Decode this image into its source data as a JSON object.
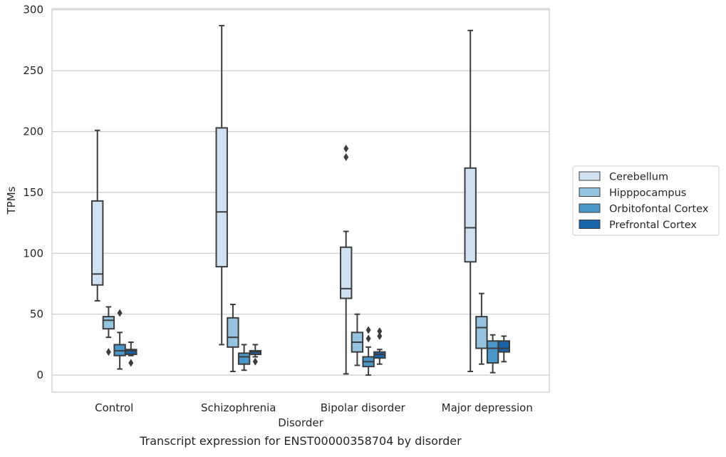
{
  "chart_data": {
    "type": "boxplot",
    "title": "Transcript expression for ENST00000358704 by disorder",
    "xlabel": "Disorder",
    "ylabel": "TPMs",
    "ylim": [
      -14,
      301
    ],
    "yticks": [
      0,
      50,
      100,
      150,
      200,
      250,
      300
    ],
    "grid": true,
    "legend_position": "right",
    "categories": [
      "Control",
      "Schizophrenia",
      "Bipolar disorder",
      "Major depression"
    ],
    "series": [
      {
        "name": "Cerebellum",
        "color": "#d0e1f2",
        "boxes": [
          {
            "whislo": 61,
            "q1": 74,
            "med": 83,
            "q3": 143,
            "whishi": 201,
            "fliers": []
          },
          {
            "whislo": 25,
            "q1": 89,
            "med": 134,
            "q3": 203,
            "whishi": 287,
            "fliers": []
          },
          {
            "whislo": 1,
            "q1": 63,
            "med": 71,
            "q3": 105,
            "whishi": 118,
            "fliers": [
              179,
              186
            ]
          },
          {
            "whislo": 3,
            "q1": 93,
            "med": 121,
            "q3": 170,
            "whishi": 283,
            "fliers": []
          }
        ]
      },
      {
        "name": "Hipppocampus",
        "color": "#94c4df",
        "boxes": [
          {
            "whislo": 31,
            "q1": 38,
            "med": 45,
            "q3": 48,
            "whishi": 56,
            "fliers": [
              19
            ]
          },
          {
            "whislo": 3,
            "q1": 23,
            "med": 31,
            "q3": 47,
            "whishi": 58,
            "fliers": []
          },
          {
            "whislo": 8,
            "q1": 19,
            "med": 27,
            "q3": 35,
            "whishi": 50,
            "fliers": []
          },
          {
            "whislo": 9,
            "q1": 22,
            "med": 39,
            "q3": 48,
            "whishi": 67,
            "fliers": []
          }
        ]
      },
      {
        "name": "Orbitofontal Cortex",
        "color": "#4a98c9",
        "boxes": [
          {
            "whislo": 5,
            "q1": 16,
            "med": 20,
            "q3": 25,
            "whishi": 35,
            "fliers": [
              51
            ]
          },
          {
            "whislo": 4,
            "q1": 9,
            "med": 15,
            "q3": 18,
            "whishi": 25,
            "fliers": []
          },
          {
            "whislo": 0,
            "q1": 7,
            "med": 11,
            "q3": 15,
            "whishi": 23,
            "fliers": [
              30,
              37
            ]
          },
          {
            "whislo": 2,
            "q1": 10,
            "med": 22,
            "q3": 28,
            "whishi": 33,
            "fliers": []
          }
        ]
      },
      {
        "name": "Prefrontal Cortex",
        "color": "#1764ab",
        "boxes": [
          {
            "whislo": 16,
            "q1": 17,
            "med": 20,
            "q3": 21,
            "whishi": 27,
            "fliers": [
              10
            ]
          },
          {
            "whislo": 15,
            "q1": 17,
            "med": 19,
            "q3": 20,
            "whishi": 25,
            "fliers": [
              11
            ]
          },
          {
            "whislo": 9,
            "q1": 14,
            "med": 17,
            "q3": 19,
            "whishi": 21,
            "fliers": [
              32,
              36
            ]
          },
          {
            "whislo": 11,
            "q1": 19,
            "med": 22,
            "q3": 28,
            "whishi": 32,
            "fliers": []
          }
        ]
      }
    ]
  }
}
